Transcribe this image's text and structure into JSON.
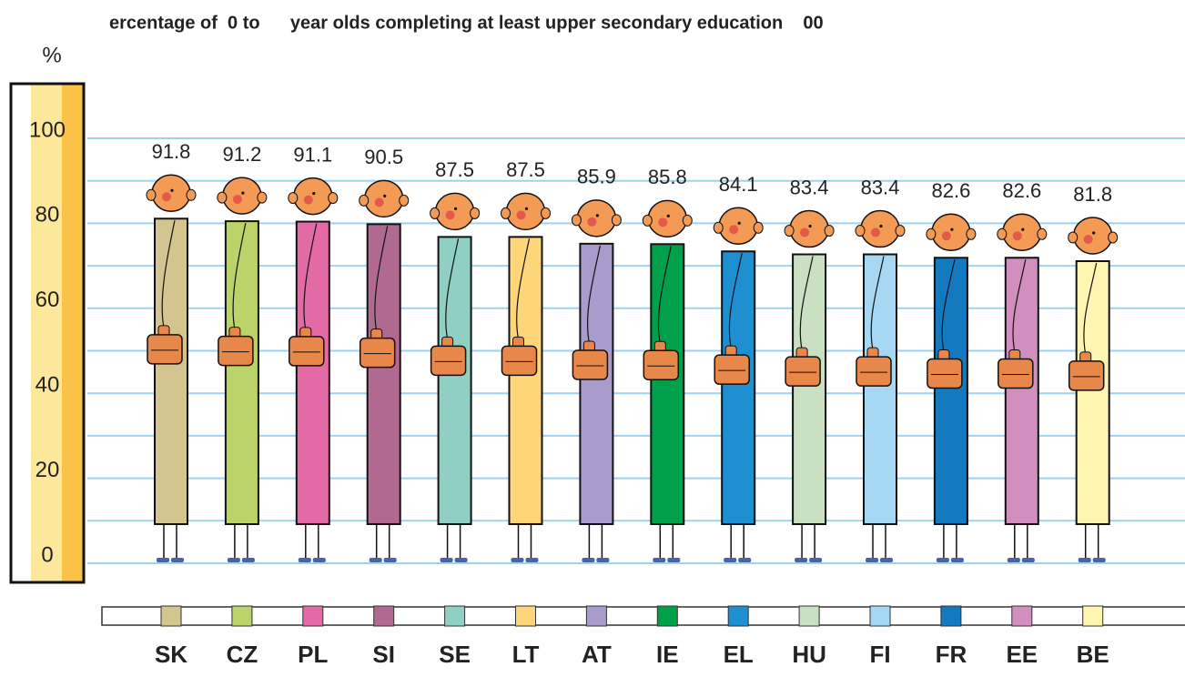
{
  "chart_data": {
    "type": "figure-bar",
    "title": "ercentage of  0 to      year olds completing at least upper secondary education    00",
    "y_label": "%",
    "categories": [
      "SK",
      "CZ",
      "PL",
      "SI",
      "SE",
      "LT",
      "AT",
      "IE",
      "EL",
      "HU",
      "FI",
      "FR",
      "EE",
      "BE"
    ],
    "values": [
      91.8,
      91.2,
      91.1,
      90.5,
      87.5,
      87.5,
      85.9,
      85.8,
      84.1,
      83.4,
      83.4,
      82.6,
      82.6,
      81.8
    ],
    "colors": [
      "#d4c48f",
      "#bcd36a",
      "#e46aa6",
      "#b06a92",
      "#8fcfc4",
      "#fdd67a",
      "#a99bcb",
      "#00a04b",
      "#1e8fd0",
      "#c9e0c3",
      "#a7d8f3",
      "#137ac0",
      "#d18fc0",
      "#fdf5b0"
    ],
    "ylim": [
      0,
      100
    ],
    "yticks": [
      0,
      20,
      40,
      60,
      80,
      100
    ],
    "grid": true
  }
}
